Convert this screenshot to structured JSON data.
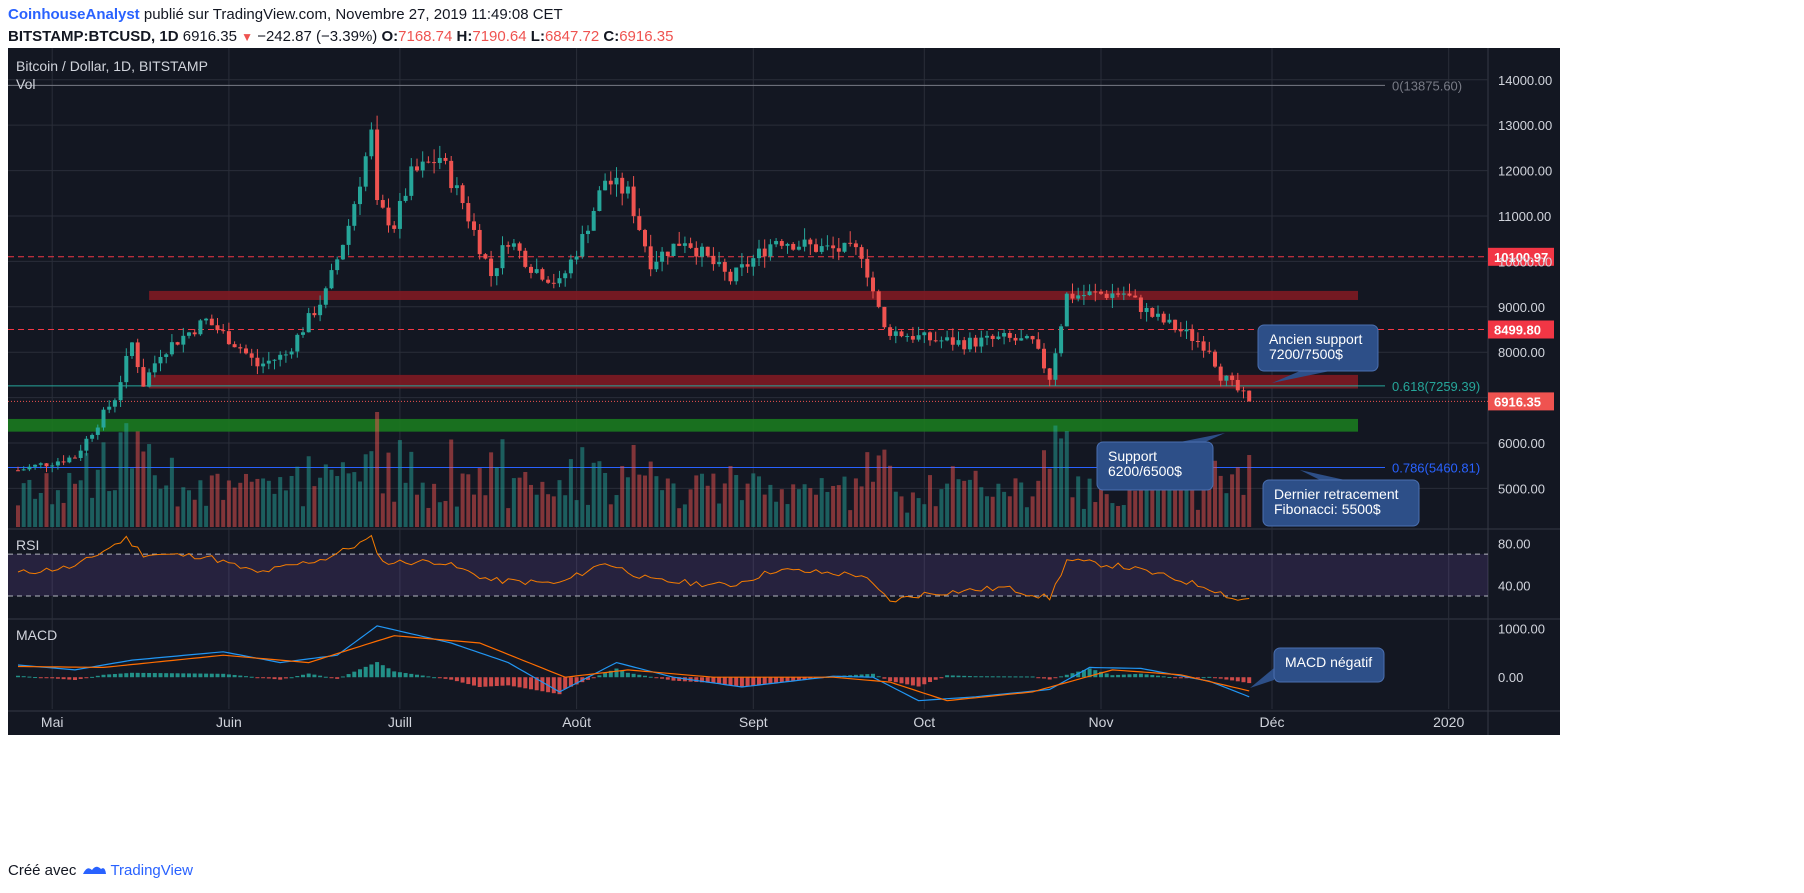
{
  "header": {
    "author": "CoinhouseAnalyst",
    "published": "publié sur TradingView.com, Novembre 27, 2019 11:49:08 CET",
    "symbol": "BITSTAMP:BTCUSD, 1D",
    "last": "6916.35",
    "change": "−242.87 (−3.39%)",
    "o_label": "O:",
    "o": "7168.74",
    "h_label": "H:",
    "h": "7190.64",
    "l_label": "L:",
    "l": "6847.72",
    "c_label": "C:",
    "c": "6916.35"
  },
  "footer": {
    "text": "Créé avec",
    "brand": "TradingView"
  },
  "colors": {
    "background": "#131722",
    "up": "#26a69a",
    "down": "#ef5350",
    "grid": "#2a2e39",
    "rsi": "#f57c00",
    "macd": "#2196f3",
    "signal": "#ff6d00",
    "resistance": "#f23645",
    "fib618": "#26a69a",
    "fib786": "#2962ff"
  },
  "chart_data": {
    "type": "candlestick",
    "title": "Bitcoin / Dollar, 1D, BITSTAMP",
    "volume_label": "Vol",
    "y_ticks": [
      5000,
      6000,
      7000,
      8000,
      9000,
      10000,
      11000,
      12000,
      13000,
      14000
    ],
    "y_tick_labels": [
      "5000.00",
      "6000.00",
      "",
      "8000.00",
      "9000.00",
      "10000.00",
      "11000.00",
      "12000.00",
      "13000.00",
      "14000.00"
    ],
    "ylim": [
      4150,
      14700
    ],
    "x_labels": [
      "Mai",
      "Juin",
      "Juill",
      "Août",
      "Sept",
      "Oct",
      "Nov",
      "Déc",
      "2020"
    ],
    "x_label_dates": [
      "2019-05-01",
      "2019-06-01",
      "2019-07-01",
      "2019-08-01",
      "2019-09-01",
      "2019-10-01",
      "2019-11-01",
      "2019-12-01",
      "2020-01-01"
    ],
    "date_range": [
      "2019-04-25",
      "2019-11-27"
    ],
    "close_key_points": [
      [
        "2019-04-25",
        5400
      ],
      [
        "2019-05-05",
        5700
      ],
      [
        "2019-05-12",
        7000
      ],
      [
        "2019-05-15",
        8200
      ],
      [
        "2019-05-17",
        7300
      ],
      [
        "2019-05-20",
        8000
      ],
      [
        "2019-05-28",
        8700
      ],
      [
        "2019-06-03",
        8100
      ],
      [
        "2019-06-06",
        7700
      ],
      [
        "2019-06-11",
        7950
      ],
      [
        "2019-06-18",
        9300
      ],
      [
        "2019-06-22",
        10800
      ],
      [
        "2019-06-26",
        12800
      ],
      [
        "2019-06-27",
        11200
      ],
      [
        "2019-06-30",
        10800
      ],
      [
        "2019-07-03",
        11900
      ],
      [
        "2019-07-08",
        12300
      ],
      [
        "2019-07-12",
        11300
      ],
      [
        "2019-07-17",
        9700
      ],
      [
        "2019-07-20",
        10500
      ],
      [
        "2019-07-24",
        9900
      ],
      [
        "2019-07-29",
        9500
      ],
      [
        "2019-08-02",
        10500
      ],
      [
        "2019-08-06",
        11800
      ],
      [
        "2019-08-10",
        11500
      ],
      [
        "2019-08-14",
        10000
      ],
      [
        "2019-08-20",
        10500
      ],
      [
        "2019-08-28",
        9600
      ],
      [
        "2019-09-05",
        10500
      ],
      [
        "2019-09-12",
        10300
      ],
      [
        "2019-09-20",
        10200
      ],
      [
        "2019-09-24",
        8500
      ],
      [
        "2019-10-01",
        8300
      ],
      [
        "2019-10-08",
        8200
      ],
      [
        "2019-10-15",
        8300
      ],
      [
        "2019-10-20",
        8200
      ],
      [
        "2019-10-23",
        7450
      ],
      [
        "2019-10-25",
        8650
      ],
      [
        "2019-10-26",
        9250
      ],
      [
        "2019-11-05",
        9300
      ],
      [
        "2019-11-10",
        8800
      ],
      [
        "2019-11-16",
        8400
      ],
      [
        "2019-11-20",
        8100
      ],
      [
        "2019-11-22",
        7500
      ],
      [
        "2019-11-25",
        7150
      ],
      [
        "2019-11-27",
        6916
      ]
    ],
    "horizontal_levels": [
      {
        "value": 10100.97,
        "label": "10100.97",
        "style": "dashed",
        "color": "#f23645"
      },
      {
        "value": 8499.8,
        "label": "8499.80",
        "style": "dashed",
        "color": "#f23645"
      },
      {
        "value": 6916.35,
        "label": "6916.35",
        "style": "dotted",
        "color": "#ef5350"
      }
    ],
    "fibonacci": [
      {
        "label": "0(13875.60)",
        "value": 13875.6,
        "color": "#787b86"
      },
      {
        "label": "0.618(7259.39)",
        "value": 7259.39,
        "color": "#26a69a"
      },
      {
        "label": "0.786(5460.81)",
        "value": 5460.81,
        "color": "#2962ff"
      }
    ],
    "zones": [
      {
        "name": "resistance-zone-upper",
        "low": 9150,
        "high": 9350,
        "color": "#801922"
      },
      {
        "name": "resistance-zone-middle",
        "low": 7200,
        "high": 7500,
        "color": "#801922"
      },
      {
        "name": "support-zone",
        "low": 6250,
        "high": 6530,
        "color": "#1b7a1f"
      }
    ],
    "annotations": [
      {
        "name": "ancien-support",
        "lines": [
          "Ancien support",
          "7200/7500$"
        ]
      },
      {
        "name": "support",
        "lines": [
          "Support",
          "6200/6500$"
        ]
      },
      {
        "name": "dernier-retracement",
        "lines": [
          "Dernier retracement",
          "Fibonacci: 5500$"
        ]
      },
      {
        "name": "macd-negatif",
        "lines": [
          "MACD négatif"
        ]
      }
    ],
    "rsi": {
      "label": "RSI",
      "upper": 70,
      "lower": 30,
      "tick_labels": [
        "80.00",
        "40.00"
      ],
      "key_points": [
        [
          "2019-04-25",
          52
        ],
        [
          "2019-05-05",
          58
        ],
        [
          "2019-05-14",
          85
        ],
        [
          "2019-05-17",
          70
        ],
        [
          "2019-05-28",
          68
        ],
        [
          "2019-06-06",
          52
        ],
        [
          "2019-06-18",
          66
        ],
        [
          "2019-06-26",
          85
        ],
        [
          "2019-06-28",
          62
        ],
        [
          "2019-07-08",
          63
        ],
        [
          "2019-07-17",
          45
        ],
        [
          "2019-07-29",
          42
        ],
        [
          "2019-08-06",
          62
        ],
        [
          "2019-08-14",
          45
        ],
        [
          "2019-08-28",
          40
        ],
        [
          "2019-09-05",
          55
        ],
        [
          "2019-09-20",
          50
        ],
        [
          "2019-09-25",
          25
        ],
        [
          "2019-10-01",
          32
        ],
        [
          "2019-10-15",
          38
        ],
        [
          "2019-10-23",
          28
        ],
        [
          "2019-10-26",
          64
        ],
        [
          "2019-11-05",
          58
        ],
        [
          "2019-11-10",
          52
        ],
        [
          "2019-11-20",
          38
        ],
        [
          "2019-11-25",
          26
        ],
        [
          "2019-11-27",
          28
        ]
      ]
    },
    "macd": {
      "label": "MACD",
      "tick_labels": [
        "1000.00",
        "0.00"
      ],
      "macd_points": [
        [
          "2019-04-25",
          250
        ],
        [
          "2019-05-05",
          150
        ],
        [
          "2019-05-15",
          350
        ],
        [
          "2019-05-31",
          520
        ],
        [
          "2019-06-10",
          300
        ],
        [
          "2019-06-20",
          450
        ],
        [
          "2019-06-27",
          1050
        ],
        [
          "2019-07-10",
          700
        ],
        [
          "2019-07-20",
          300
        ],
        [
          "2019-07-29",
          -300
        ],
        [
          "2019-08-08",
          300
        ],
        [
          "2019-08-18",
          0
        ],
        [
          "2019-08-30",
          -200
        ],
        [
          "2019-09-15",
          20
        ],
        [
          "2019-09-22",
          0
        ],
        [
          "2019-09-30",
          -480
        ],
        [
          "2019-10-10",
          -400
        ],
        [
          "2019-10-23",
          -250
        ],
        [
          "2019-10-30",
          200
        ],
        [
          "2019-11-08",
          180
        ],
        [
          "2019-11-20",
          -80
        ],
        [
          "2019-11-27",
          -400
        ]
      ],
      "signal_points": [
        [
          "2019-04-25",
          220
        ],
        [
          "2019-05-10",
          200
        ],
        [
          "2019-05-31",
          450
        ],
        [
          "2019-06-15",
          300
        ],
        [
          "2019-06-30",
          850
        ],
        [
          "2019-07-15",
          700
        ],
        [
          "2019-07-30",
          0
        ],
        [
          "2019-08-10",
          150
        ],
        [
          "2019-08-25",
          0
        ],
        [
          "2019-09-15",
          0
        ],
        [
          "2019-09-25",
          -100
        ],
        [
          "2019-10-05",
          -480
        ],
        [
          "2019-10-20",
          -300
        ],
        [
          "2019-11-03",
          150
        ],
        [
          "2019-11-15",
          50
        ],
        [
          "2019-11-27",
          -280
        ]
      ]
    }
  }
}
